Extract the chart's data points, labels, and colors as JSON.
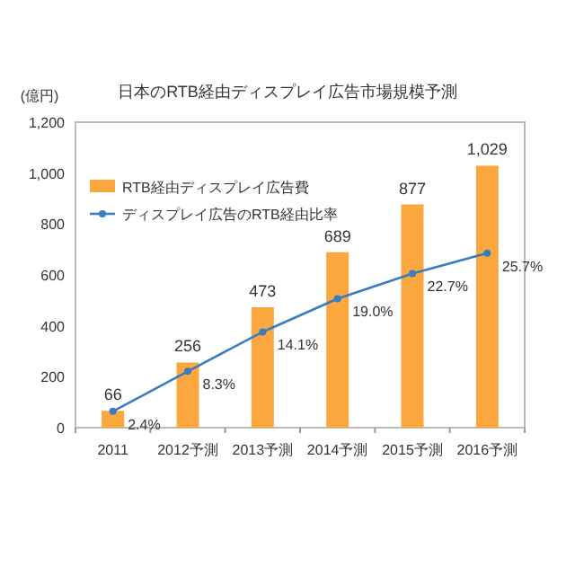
{
  "chart_data": {
    "type": "bar",
    "title": "日本のRTB経由ディスプレイ広告市場規模予測",
    "ylabel": "(億円)",
    "categories": [
      "2011",
      "2012予測",
      "2013予測",
      "2014予測",
      "2015予測",
      "2016予測"
    ],
    "series": [
      {
        "name": "RTB経由ディスプレイ広告費",
        "color": "#f9a73e",
        "values": [
          66,
          256,
          473,
          689,
          877,
          1029
        ],
        "value_labels": [
          "66",
          "256",
          "473",
          "689",
          "877",
          "1,029"
        ]
      },
      {
        "name": "ディスプレイ広告のRTB経由比率",
        "type": "line",
        "axis": "y2",
        "color": "#3a7cc0",
        "marker": "circle",
        "values": [
          2.4,
          8.3,
          14.1,
          19.0,
          22.7,
          25.7
        ],
        "value_labels": [
          "2.4%",
          "8.3%",
          "14.1%",
          "19.0%",
          "22.7%",
          "25.7%"
        ]
      }
    ],
    "ylim": [
      0,
      1200
    ],
    "yticks": [
      0,
      200,
      400,
      600,
      800,
      {
        "value": 1000,
        "label": "1,000"
      },
      {
        "value": 1200,
        "label": "1,200"
      }
    ],
    "y2lim": [
      0,
      45
    ],
    "tick_labels": "y",
    "grid": false,
    "legend": "top left"
  }
}
